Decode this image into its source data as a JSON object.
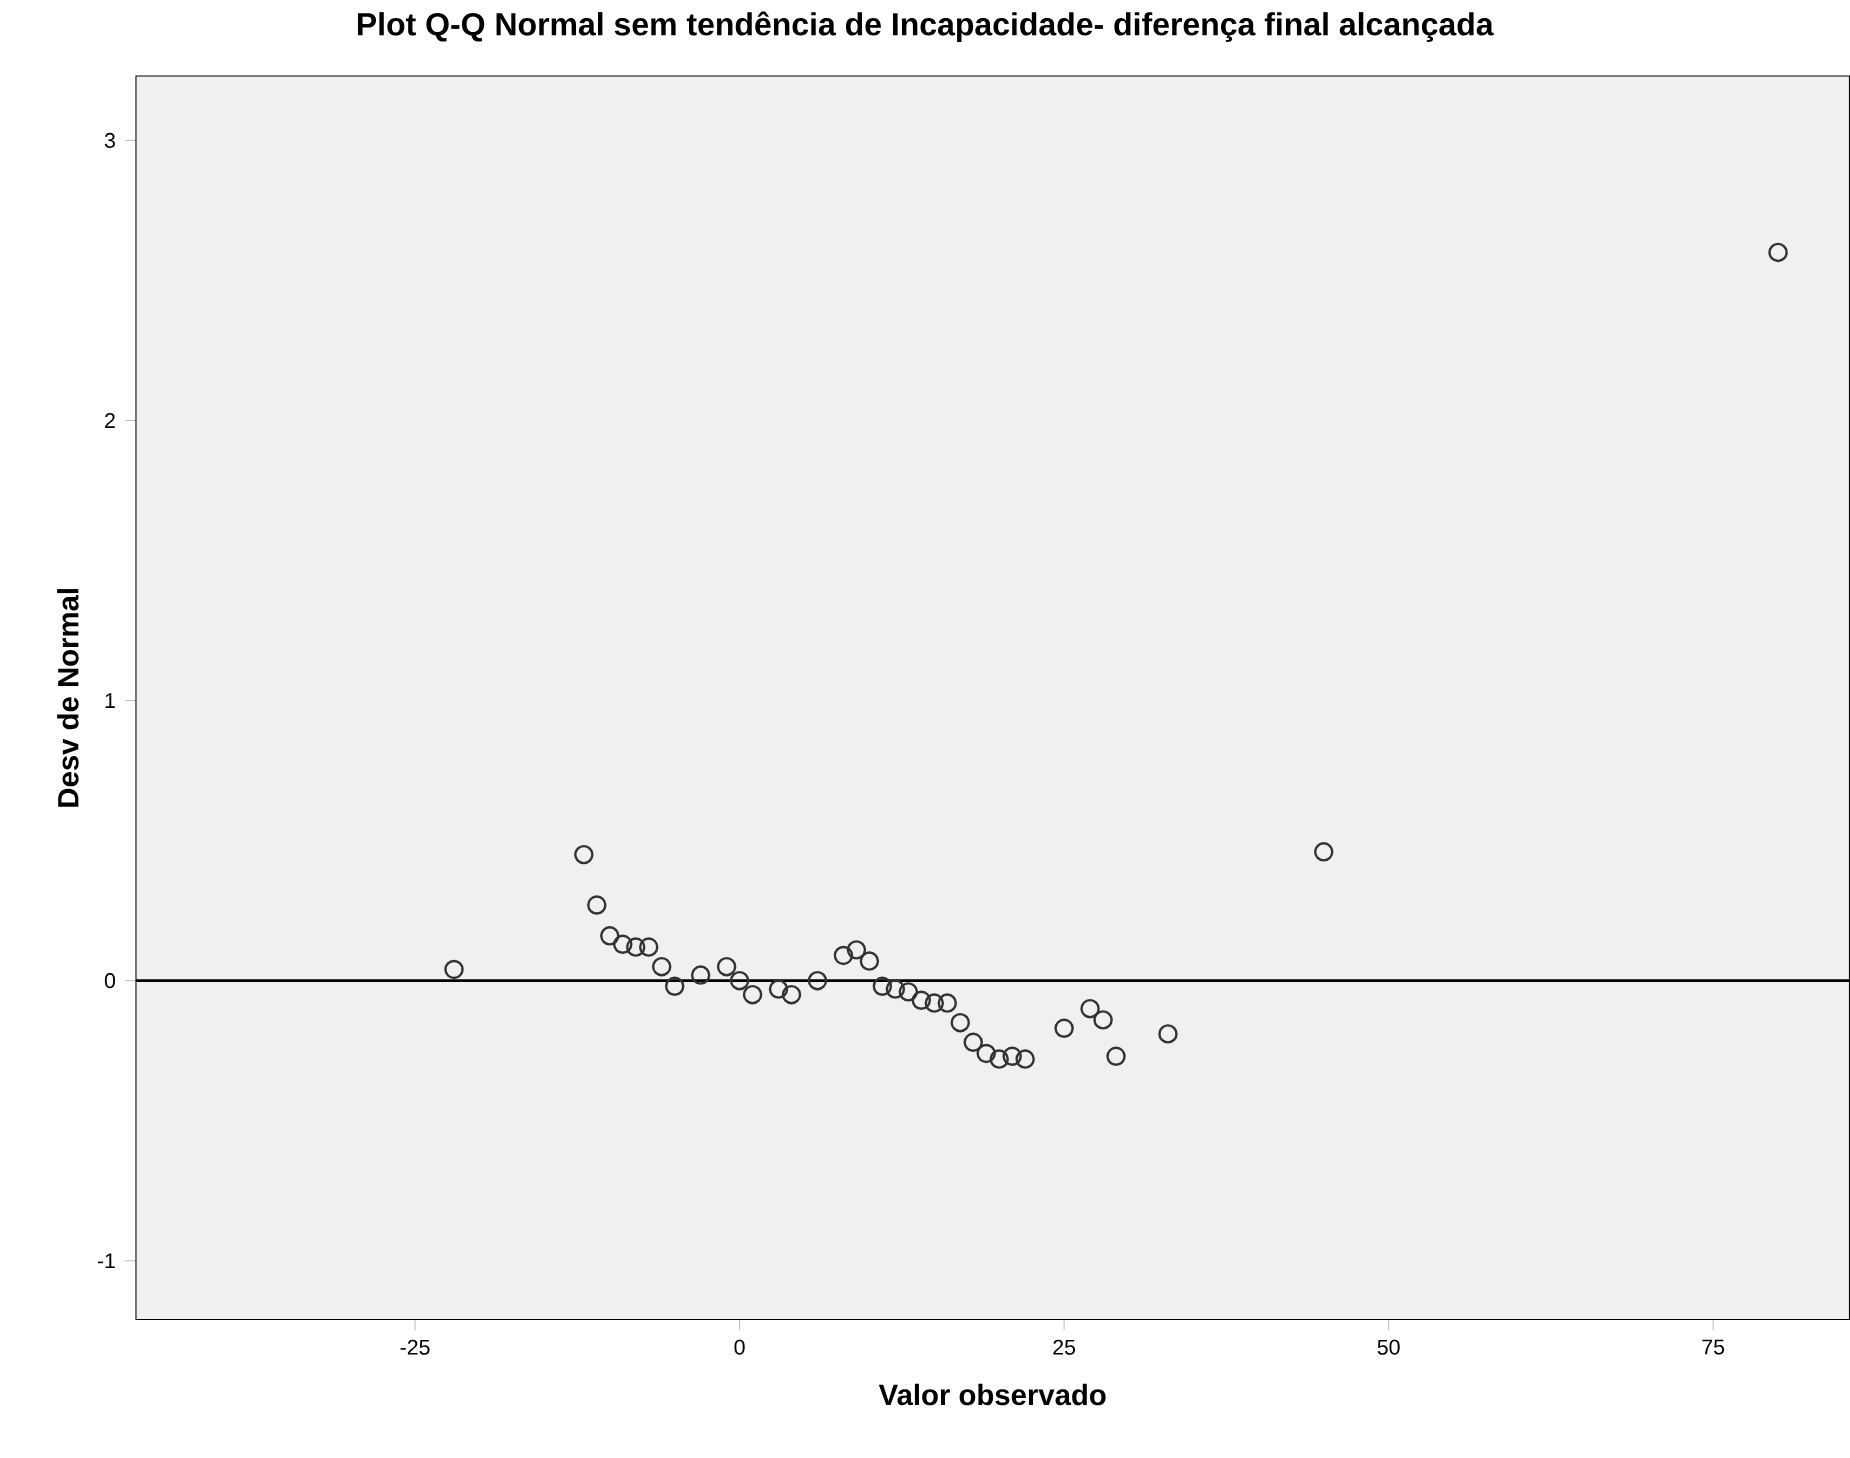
{
  "chart_data": {
    "type": "scatter",
    "title": "Plot Q-Q Normal sem tendência de Incapacidade- diferença final alcançada",
    "xlabel": "Valor observado",
    "ylabel": "Desv de Normal",
    "x": [
      -22,
      -12,
      -11,
      -10,
      -9,
      -8,
      -7,
      -6,
      -5,
      -3,
      -1,
      0,
      1,
      3,
      4,
      6,
      8,
      9,
      10,
      11,
      12,
      13,
      14,
      15,
      16,
      17,
      18,
      19,
      20,
      21,
      22,
      25,
      27,
      28,
      29,
      33,
      45,
      80
    ],
    "values": [
      0.04,
      0.45,
      0.27,
      0.16,
      0.13,
      0.12,
      0.12,
      0.05,
      -0.02,
      0.02,
      0.05,
      0.0,
      -0.05,
      -0.03,
      -0.05,
      0.0,
      0.09,
      0.11,
      0.07,
      -0.02,
      -0.03,
      -0.04,
      -0.07,
      -0.08,
      -0.08,
      -0.15,
      -0.22,
      -0.26,
      -0.28,
      -0.27,
      -0.28,
      -0.17,
      -0.1,
      -0.14,
      -0.27,
      -0.19,
      0.46,
      2.6
    ],
    "color": "#333333",
    "marker": "circle",
    "grid": false,
    "xlim": [
      -46.5,
      85.5
    ],
    "ylim": [
      -1.21,
      3.23
    ],
    "xticks": [
      -25,
      0,
      25,
      50,
      75
    ],
    "yticks": [
      -1,
      0,
      1,
      2,
      3
    ],
    "ref_lines": [
      {
        "axis": "y",
        "value": 0,
        "color": "#000000"
      }
    ]
  }
}
